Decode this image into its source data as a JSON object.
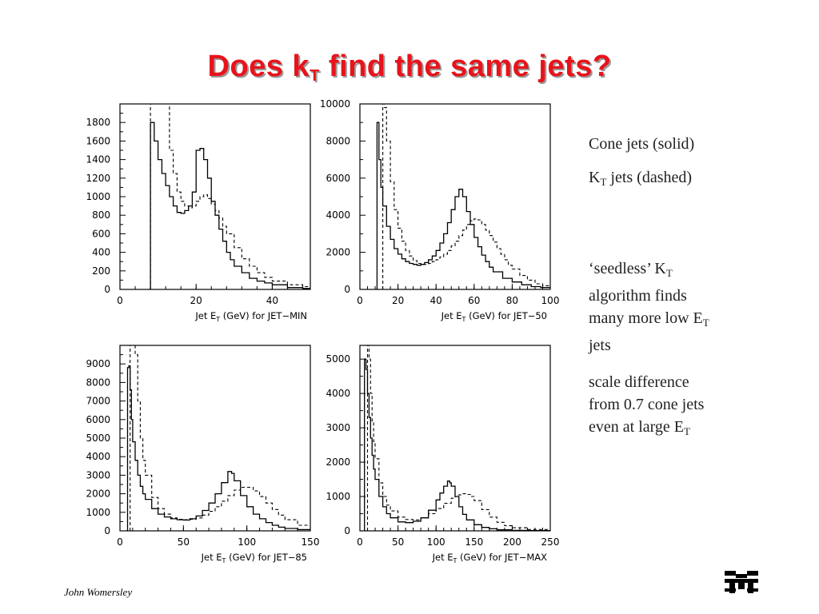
{
  "slide": {
    "title_main": "Does k",
    "title_sub": "T",
    "title_rest": " find the same jets?",
    "footer": "John Womersley"
  },
  "notes": {
    "line1": "Cone jets (solid)",
    "line2_a": "K",
    "line2_sub": "T",
    "line2_b": " jets (dashed)",
    "p1_a": "‘seedless’ K",
    "p1_sub1": "T",
    "p1_b": "algorithm finds",
    "p1_c": "many more low E",
    "p1_sub2": "T",
    "p1_d": "jets",
    "p2_a": "scale difference",
    "p2_b": "from 0.7 cone jets",
    "p2_c": "even at large E",
    "p2_sub": "T"
  },
  "chart_data": [
    {
      "type": "line",
      "xlabel": "Jet E_T (GeV) for JET−MIN",
      "xlim": [
        0,
        50
      ],
      "ylim": [
        0,
        2000
      ],
      "xticks": [
        0,
        20,
        40
      ],
      "yticks": [
        0,
        200,
        400,
        600,
        800,
        1000,
        1200,
        1400,
        1600,
        1800
      ],
      "series": [
        {
          "style": "solid",
          "x": [
            7.5,
            8,
            9,
            10,
            11,
            12,
            13,
            14,
            15,
            16,
            17,
            18,
            19,
            20,
            21,
            22,
            23,
            24,
            25,
            26,
            27,
            28,
            29,
            30,
            32,
            34,
            36,
            38,
            40,
            44,
            48,
            50
          ],
          "y": [
            0,
            1800,
            1600,
            1400,
            1250,
            1120,
            1000,
            900,
            830,
            820,
            850,
            900,
            1050,
            1500,
            1520,
            1400,
            1200,
            950,
            800,
            650,
            520,
            400,
            320,
            250,
            180,
            120,
            90,
            70,
            50,
            20,
            10,
            5
          ]
        },
        {
          "style": "dashed",
          "x": [
            8,
            9,
            10,
            11,
            12,
            13,
            14,
            15,
            16,
            17,
            18,
            19,
            20,
            21,
            22,
            23,
            24,
            25,
            26,
            27,
            28,
            30,
            32,
            34,
            36,
            38,
            40,
            44,
            48,
            50
          ],
          "y": [
            2000,
            2000,
            2000,
            2000,
            2000,
            1500,
            1250,
            1050,
            950,
            900,
            880,
            900,
            950,
            1000,
            1020,
            980,
            920,
            850,
            770,
            680,
            600,
            450,
            330,
            250,
            180,
            130,
            90,
            50,
            30,
            20
          ]
        }
      ]
    },
    {
      "type": "line",
      "xlabel": "Jet E_T (GeV) for JET−50",
      "xlim": [
        0,
        100
      ],
      "ylim": [
        0,
        10000
      ],
      "xticks": [
        0,
        20,
        40,
        60,
        80,
        100
      ],
      "yticks": [
        0,
        2000,
        4000,
        6000,
        8000,
        10000
      ],
      "series": [
        {
          "style": "solid",
          "x": [
            8.5,
            9,
            10,
            11,
            12,
            14,
            16,
            18,
            20,
            22,
            24,
            26,
            28,
            30,
            32,
            34,
            36,
            38,
            40,
            42,
            44,
            46,
            48,
            50,
            52,
            54,
            56,
            58,
            60,
            62,
            64,
            66,
            68,
            70,
            75,
            80,
            85,
            90,
            95,
            100
          ],
          "y": [
            0,
            9000,
            7000,
            5500,
            4500,
            3400,
            2700,
            2200,
            1900,
            1650,
            1500,
            1400,
            1350,
            1300,
            1350,
            1450,
            1600,
            1800,
            2100,
            2500,
            3000,
            3600,
            4300,
            5000,
            5400,
            5000,
            4200,
            3500,
            2800,
            2300,
            1850,
            1500,
            1200,
            950,
            600,
            400,
            250,
            150,
            100,
            60
          ]
        },
        {
          "style": "dashed",
          "x": [
            12,
            13,
            14,
            16,
            18,
            20,
            22,
            24,
            26,
            28,
            30,
            32,
            34,
            36,
            38,
            40,
            42,
            44,
            46,
            48,
            50,
            52,
            54,
            56,
            58,
            60,
            62,
            64,
            66,
            68,
            70,
            72,
            74,
            76,
            78,
            80,
            84,
            88,
            92,
            96,
            100
          ],
          "y": [
            10000,
            9800,
            8000,
            5800,
            4300,
            3300,
            2600,
            2100,
            1800,
            1550,
            1400,
            1350,
            1350,
            1400,
            1500,
            1600,
            1750,
            1900,
            2100,
            2350,
            2600,
            2900,
            3200,
            3500,
            3700,
            3800,
            3750,
            3500,
            3200,
            2900,
            2550,
            2200,
            1900,
            1600,
            1300,
            1100,
            750,
            500,
            300,
            200,
            130
          ]
        }
      ]
    },
    {
      "type": "line",
      "xlabel": "Jet E_T (GeV) for JET−85",
      "xlim": [
        0,
        150
      ],
      "ylim": [
        0,
        10000
      ],
      "xticks": [
        0,
        50,
        100,
        150
      ],
      "yticks": [
        0,
        1000,
        2000,
        3000,
        4000,
        5000,
        6000,
        7000,
        8000,
        9000
      ],
      "series": [
        {
          "style": "solid",
          "x": [
            5,
            6,
            7,
            8,
            9,
            10,
            12,
            14,
            16,
            18,
            20,
            25,
            30,
            35,
            40,
            45,
            50,
            55,
            60,
            65,
            70,
            75,
            80,
            85,
            88,
            90,
            95,
            100,
            105,
            110,
            115,
            120,
            125,
            130,
            140,
            150
          ],
          "y": [
            0,
            8800,
            8900,
            7600,
            6000,
            4800,
            3800,
            3000,
            2400,
            2000,
            1700,
            1200,
            900,
            750,
            650,
            600,
            580,
            650,
            800,
            1100,
            1500,
            2000,
            2600,
            3200,
            3100,
            2700,
            1900,
            1300,
            900,
            650,
            450,
            300,
            200,
            130,
            70,
            30
          ]
        },
        {
          "style": "dashed",
          "x": [
            8,
            9,
            10,
            12,
            14,
            16,
            18,
            20,
            25,
            30,
            35,
            40,
            45,
            50,
            55,
            60,
            65,
            70,
            75,
            80,
            85,
            90,
            95,
            100,
            105,
            110,
            115,
            120,
            125,
            130,
            140,
            150
          ],
          "y": [
            10000,
            10000,
            10000,
            9500,
            7000,
            5000,
            3800,
            3000,
            1800,
            1200,
            900,
            700,
            620,
            600,
            620,
            700,
            850,
            1050,
            1300,
            1600,
            1900,
            2200,
            2350,
            2350,
            2150,
            1850,
            1500,
            1150,
            850,
            600,
            300,
            150
          ]
        }
      ]
    },
    {
      "type": "line",
      "xlabel": "Jet E_T (GeV) for JET−MAX",
      "xlim": [
        0,
        250
      ],
      "ylim": [
        0,
        5400
      ],
      "xticks": [
        0,
        50,
        100,
        150,
        200,
        250
      ],
      "yticks": [
        0,
        1000,
        2000,
        3000,
        4000,
        5000
      ],
      "series": [
        {
          "style": "solid",
          "x": [
            5,
            6,
            8,
            10,
            12,
            14,
            16,
            18,
            20,
            25,
            30,
            35,
            40,
            50,
            60,
            70,
            80,
            90,
            100,
            105,
            110,
            115,
            118,
            120,
            125,
            130,
            135,
            140,
            150,
            160,
            170,
            180,
            200,
            220,
            250
          ],
          "y": [
            0,
            5000,
            4700,
            4000,
            3300,
            2700,
            2200,
            1800,
            1500,
            1000,
            700,
            500,
            380,
            260,
            240,
            280,
            380,
            600,
            900,
            1100,
            1300,
            1450,
            1400,
            1300,
            1000,
            700,
            480,
            320,
            180,
            100,
            60,
            30,
            15,
            8,
            5
          ]
        },
        {
          "style": "dashed",
          "x": [
            10,
            11,
            12,
            14,
            16,
            18,
            20,
            25,
            30,
            35,
            40,
            50,
            60,
            70,
            80,
            90,
            100,
            110,
            120,
            125,
            130,
            135,
            140,
            145,
            150,
            160,
            170,
            180,
            190,
            200,
            220,
            250
          ],
          "y": [
            5400,
            5400,
            5000,
            4000,
            3200,
            2600,
            2100,
            1400,
            1000,
            750,
            580,
            400,
            330,
            320,
            380,
            500,
            650,
            800,
            950,
            1000,
            1050,
            1080,
            1060,
            1000,
            880,
            620,
            400,
            250,
            150,
            90,
            40,
            15
          ]
        }
      ]
    }
  ]
}
